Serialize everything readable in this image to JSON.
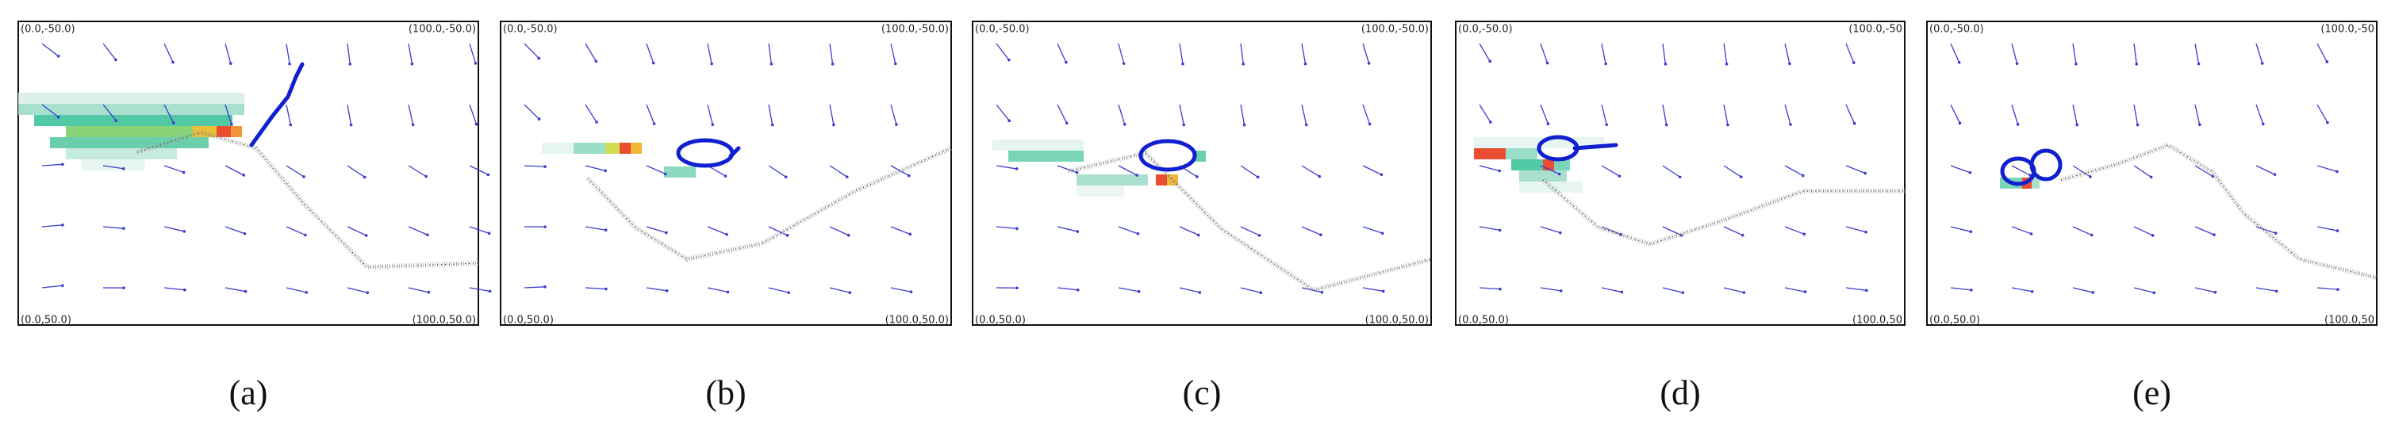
{
  "panels": [
    {
      "caption": "(a)",
      "top_left": "(0.0,-50.0)",
      "top_right": "(100.0,-50.0)",
      "bottom_left": "(0.0,50.0)",
      "bottom_right": "(100.0,50.0)"
    },
    {
      "caption": "(b)",
      "top_left": "(0.0,-50.0)",
      "top_right": "(100.0,-50.0)",
      "bottom_left": "(0.0,50.0)",
      "bottom_right": "(100.0,50.0)"
    },
    {
      "caption": "(c)",
      "top_left": "(0.0,-50.0)",
      "top_right": "(100.0,-50.0)",
      "bottom_left": "(0.0,50.0)",
      "bottom_right": "(100.0,50.0)"
    },
    {
      "caption": "(d)",
      "top_left": "(0.0,-50.0)",
      "top_right": "(100.0,-50",
      "bottom_left": "(0.0,50.0)",
      "bottom_right": "(100.0,50"
    },
    {
      "caption": "(e)",
      "top_left": "(0.0,-50.0)",
      "top_right": "(100.0,-50",
      "bottom_left": "(0.0,50.0)",
      "bottom_right": "(100.0,50"
    }
  ]
}
